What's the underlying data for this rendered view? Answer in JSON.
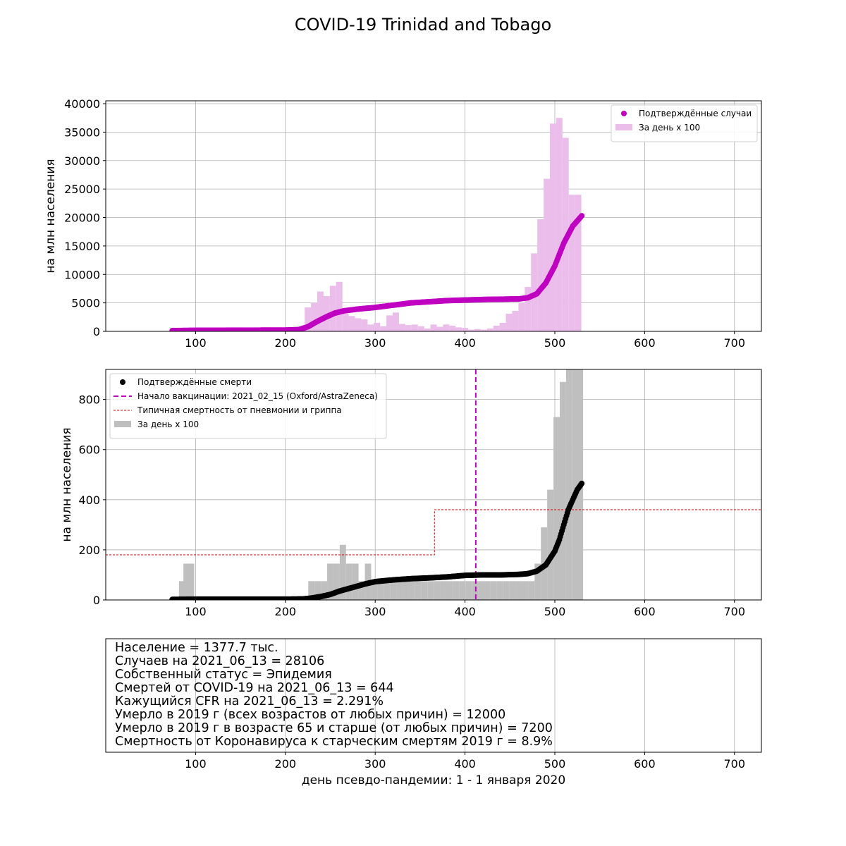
{
  "figure": {
    "title": "COVID-19 Trinidad and Tobago",
    "xlabel": "день псевдо-пандемии: 1 - 1 января 2020"
  },
  "chart_data": [
    {
      "type": "line",
      "name": "cases",
      "ylabel": "на млн населения",
      "xlim": [
        0,
        730
      ],
      "ylim": [
        0,
        40500
      ],
      "xticks": [
        100,
        200,
        300,
        400,
        500,
        600,
        700
      ],
      "yticks": [
        0,
        5000,
        10000,
        15000,
        20000,
        25000,
        30000,
        35000,
        40000
      ],
      "grid": true,
      "legend_position": "top-right",
      "series": [
        {
          "name": "Подтверждённые случаи",
          "kind": "scatter-line",
          "color": "#c000c0",
          "x": [
            74,
            100,
            150,
            200,
            215,
            225,
            235,
            245,
            255,
            265,
            280,
            300,
            320,
            340,
            360,
            380,
            400,
            420,
            440,
            460,
            470,
            480,
            490,
            500,
            510,
            520,
            530
          ],
          "y": [
            120,
            180,
            200,
            220,
            300,
            800,
            1700,
            2500,
            3200,
            3600,
            3900,
            4200,
            4600,
            5000,
            5200,
            5400,
            5500,
            5600,
            5650,
            5700,
            5900,
            6600,
            8500,
            11500,
            15500,
            18500,
            20300
          ]
        },
        {
          "name": "За день x 100",
          "kind": "bar",
          "color": "#ebbdeb",
          "bin_width": 7,
          "x": [
            225,
            232,
            239,
            246,
            253,
            260,
            267,
            274,
            281,
            288,
            295,
            302,
            309,
            316,
            323,
            330,
            337,
            344,
            351,
            358,
            365,
            372,
            379,
            386,
            393,
            400,
            407,
            414,
            421,
            428,
            435,
            442,
            449,
            456,
            463,
            470,
            477,
            484,
            491,
            498,
            505,
            512,
            519,
            526
          ],
          "y": [
            4200,
            5000,
            7000,
            6200,
            8000,
            8700,
            3100,
            2700,
            2300,
            2100,
            1200,
            1500,
            900,
            2800,
            3300,
            1300,
            1100,
            1200,
            900,
            500,
            1200,
            800,
            1200,
            1000,
            700,
            600,
            300,
            400,
            300,
            500,
            1000,
            1500,
            3100,
            3600,
            5000,
            7800,
            13700,
            19700,
            26800,
            36500,
            37500,
            34000,
            24000,
            24000
          ]
        }
      ]
    },
    {
      "type": "line",
      "name": "deaths",
      "ylabel": "на млн населения",
      "xlim": [
        0,
        730
      ],
      "ylim": [
        0,
        920
      ],
      "xticks": [
        100,
        200,
        300,
        400,
        500,
        600,
        700
      ],
      "yticks": [
        0,
        200,
        400,
        600,
        800
      ],
      "grid": true,
      "legend_position": "top-left",
      "series": [
        {
          "name": "Подтверждённые смерти",
          "kind": "scatter-line",
          "color": "#000000",
          "x": [
            74,
            100,
            150,
            200,
            220,
            230,
            240,
            250,
            260,
            270,
            280,
            290,
            300,
            320,
            340,
            360,
            380,
            400,
            420,
            440,
            460,
            470,
            480,
            490,
            500,
            505,
            510,
            515,
            520,
            525,
            530
          ],
          "y": [
            2,
            3,
            3,
            3,
            4,
            8,
            14,
            22,
            35,
            45,
            55,
            65,
            73,
            80,
            85,
            88,
            92,
            98,
            100,
            100,
            102,
            105,
            115,
            140,
            195,
            240,
            300,
            360,
            400,
            440,
            465
          ]
        },
        {
          "name": "Начало вакцинации: 2021_02_15 (Oxford/AstraZeneca)",
          "kind": "vline",
          "color": "#c000c0",
          "x": 412
        },
        {
          "name": "Типичная смертность от пневмонии и гриппа",
          "kind": "step",
          "color": "#e00000",
          "x": [
            0,
            366,
            366,
            730
          ],
          "y": [
            180,
            180,
            360,
            360
          ]
        },
        {
          "name": "За день x 100",
          "kind": "bar",
          "color": "#bfbfbf",
          "bin_width": 7,
          "x": [
            85,
            90,
            95,
            229,
            236,
            243,
            250,
            257,
            264,
            271,
            278,
            285,
            292,
            299,
            306,
            313,
            320,
            327,
            334,
            341,
            348,
            355,
            362,
            369,
            376,
            383,
            390,
            397,
            404,
            411,
            418,
            425,
            432,
            439,
            446,
            453,
            460,
            467,
            474,
            481,
            488,
            495,
            502,
            509,
            516,
            523,
            528
          ],
          "y": [
            75,
            145,
            145,
            75,
            75,
            75,
            145,
            145,
            220,
            145,
            145,
            75,
            145,
            75,
            75,
            75,
            75,
            75,
            75,
            75,
            75,
            75,
            75,
            75,
            75,
            75,
            75,
            75,
            75,
            75,
            75,
            75,
            75,
            75,
            75,
            75,
            75,
            75,
            75,
            145,
            290,
            440,
            730,
            870,
            920,
            920,
            920
          ]
        }
      ]
    }
  ],
  "info_box": {
    "xticks": [
      100,
      200,
      300,
      400,
      500,
      600,
      700
    ],
    "lines": [
      "Население = 1377.7 тыс.",
      "Случаев на 2021_06_13 = 28106",
      "Собственный статус = Эпидемия",
      "Смертей от COVID-19 на 2021_06_13 = 644",
      "Кажущийся CFR на 2021_06_13 = 2.291%",
      "Умерло в 2019 г (всех возрастов от любых причин) = 12000",
      "Умерло в 2019 г в возрасте 65 и старше (от любых причин) = 7200",
      "Смертность от Коронавируса к старческим смертям 2019 г = 8.9%"
    ]
  }
}
